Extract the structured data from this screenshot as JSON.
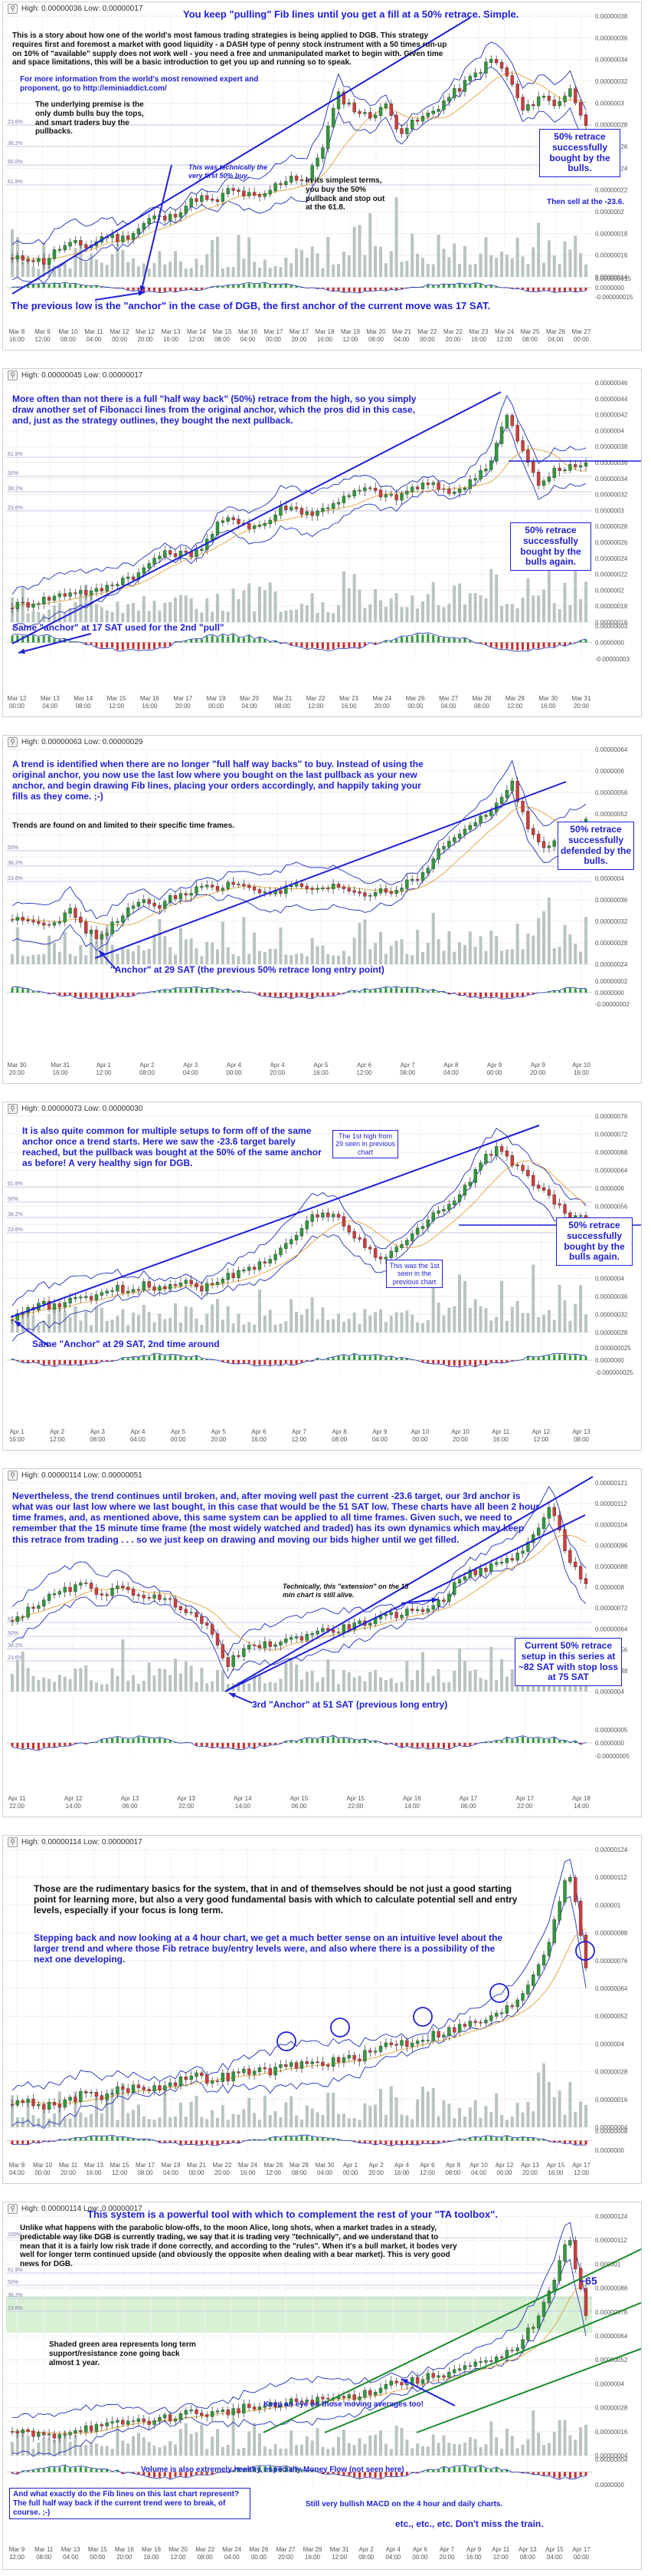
{
  "theme": {
    "price_line": "#1a1a1a",
    "up_color": "#2f9a3a",
    "down_color": "#d23b3b",
    "volume_color": "#b9c4bf",
    "band_color": "#1e2fb5",
    "fib_color": "#c8c8e6",
    "annot_color": "#1f1fd6",
    "macd_pos": "#2e9a3a",
    "macd_neg": "#c62e2e",
    "zone_color": "#b8e6b0"
  },
  "icons": {
    "magnifier": "search-icon"
  },
  "charts": [
    {
      "header": "High: 0.00000036 Low: 0.00000017",
      "title_note": "You keep \"pulling\" Fib lines until you get a fill at a 50% retrace. Simple.",
      "notes": [
        "This is a story about how one of the world's most famous trading strategies is being applied to DGB. This strategy requires first and foremost a market with good liquidity - a DASH type of penny stock instrument with a 50 times run-up on 10% of \"available\" supply does not work well - you need a free and unmanipulated market to begin with. Given time and space limitations, this will be a basic introduction to get you up and running so to speak.",
        "For more information from the world's most renowned expert and proponent, go to http://eminiaddict.com/",
        "The underlying premise is the only dumb bulls buy the tops, and smart traders buy the pullbacks.",
        "This was technically the very first 50% buy.",
        "In its simplest terms, you buy the 50% pullback and stop out at the 61.8.",
        "Then sell at the -23.6.",
        "The previous low is the \"anchor\" in the case of DGB, the first anchor of the current move was 17 SAT."
      ],
      "callout": "50% retrace successfully bought by the bulls.",
      "x_labels": [
        "Mar 8 16:00",
        "Mar 9 12:00",
        "Mar 10 08:00",
        "Mar 11 04:00",
        "Mar 12 00:00",
        "Mar 12 20:00",
        "Mar 13 16:00",
        "Mar 14 12:00",
        "Mar 15 08:00",
        "Mar 16 04:00",
        "Mar 17 00:00",
        "Mar 17 20:00",
        "Mar 18 16:00",
        "Mar 19 12:00",
        "Mar 20 08:00",
        "Mar 21 04:00",
        "Mar 22 00:00",
        "Mar 22 20:00",
        "Mar 23 16:00",
        "Mar 24 12:00",
        "Mar 25 08:00",
        "Mar 26 04:00",
        "Mar 27 00:00"
      ],
      "y_labels": [
        "0.00000038",
        "0.00000036",
        "0.00000034",
        "0.00000032",
        "0.0000003",
        "0.00000028",
        "0.00000026",
        "0.00000024",
        "0.00000022",
        "0.0000002",
        "0.00000018",
        "0.00000016",
        "0.00000014"
      ],
      "macd_labels": [
        "0.000000015",
        "0.0000000",
        "-0.000000015"
      ],
      "fib_labels": [
        "23.6%",
        "38.2%",
        "50.0%",
        "61.8%"
      ],
      "price_path": [
        0.05,
        0.06,
        0.04,
        0.1,
        0.12,
        0.11,
        0.16,
        0.14,
        0.18,
        0.24,
        0.23,
        0.28,
        0.33,
        0.3,
        0.36,
        0.34,
        0.32,
        0.38,
        0.42,
        0.4,
        0.55,
        0.78,
        0.72,
        0.68,
        0.74,
        0.62,
        0.66,
        0.7,
        0.76,
        0.82,
        0.88,
        0.94,
        0.86,
        0.7,
        0.78,
        0.74,
        0.8,
        0.66
      ]
    },
    {
      "header": "High: 0.00000045 Low: 0.00000017",
      "notes": [
        "More often than not there is a full \"half way back\" (50%) retrace from the high, so you simply draw another set of Fibonacci lines from the original anchor, which the pros did in this case, and, just as the strategy outlines, they bought the next pullback.",
        "Same \"anchor\" at 17 SAT used for the 2nd \"pull\""
      ],
      "callout": "50% retrace successfully bought by the bulls again.",
      "x_labels": [
        "Mar 12 00:00",
        "Mar 13 04:00",
        "Mar 14 08:00",
        "Mar 15 12:00",
        "Mar 16 16:00",
        "Mar 17 20:00",
        "Mar 19 00:00",
        "Mar 20 04:00",
        "Mar 21 08:00",
        "Mar 22 12:00",
        "Mar 23 16:00",
        "Mar 24 20:00",
        "Mar 26 00:00",
        "Mar 27 04:00",
        "Mar 28 08:00",
        "Mar 29 12:00",
        "Mar 30 16:00",
        "Mar 31 20:00"
      ],
      "y_labels": [
        "0.00000046",
        "0.00000044",
        "0.00000042",
        "0.0000004",
        "0.00000038",
        "0.00000036",
        "0.00000034",
        "0.00000032",
        "0.0000003",
        "0.00000028",
        "0.00000026",
        "0.00000024",
        "0.00000022",
        "0.0000002",
        "0.00000018",
        "0.00000016"
      ],
      "macd_labels": [
        "0.00000003",
        "0.0000000",
        "-0.00000003"
      ],
      "fib_labels": [
        "61.8%",
        "50%",
        "38.2%",
        "23.6%"
      ],
      "price_path": [
        0.05,
        0.06,
        0.08,
        0.1,
        0.12,
        0.11,
        0.14,
        0.18,
        0.2,
        0.28,
        0.3,
        0.29,
        0.33,
        0.44,
        0.46,
        0.42,
        0.44,
        0.52,
        0.5,
        0.48,
        0.53,
        0.56,
        0.6,
        0.58,
        0.55,
        0.6,
        0.62,
        0.6,
        0.58,
        0.66,
        0.72,
        0.95,
        0.78,
        0.62,
        0.68,
        0.7,
        0.72
      ]
    },
    {
      "header": "High: 0.00000063 Low: 0.00000029",
      "notes": [
        "A trend is identified when there are no longer \"full half way backs\" to buy. Instead of using the original anchor, you now use the last low where you bought on the last pullback as your new anchor, and begin drawing Fib lines, placing your orders accordingly, and happily taking your fills as they come. ;-)",
        "Trends are found on and limited to their specific time frames.",
        "\"Anchor\" at 29 SAT (the previous 50% retrace long entry point)"
      ],
      "callout": "50% retrace successfully defended by the bulls.",
      "x_labels": [
        "Mar 30 20:00",
        "Mar 31 16:00",
        "Apr 1 12:00",
        "Apr 2 08:00",
        "Apr 3 04:00",
        "Apr 4 00:00",
        "Apr 4 20:00",
        "Apr 5 16:00",
        "Apr 6 12:00",
        "Apr 7 08:00",
        "Apr 8 04:00",
        "Apr 9 00:00",
        "Apr 9 20:00",
        "Apr 10 16:00"
      ],
      "y_labels": [
        "0.00000064",
        "0.0000006",
        "0.00000056",
        "0.00000052",
        "0.00000048",
        "0.00000044",
        "0.0000004",
        "0.00000036",
        "0.00000032",
        "0.00000028",
        "0.00000024"
      ],
      "macd_labels": [
        "0.00000002",
        "0.0000000",
        "-0.00000002"
      ],
      "fib_labels": [
        "50%",
        "38.2%",
        "23.6%"
      ],
      "price_path": [
        0.2,
        0.22,
        0.18,
        0.2,
        0.25,
        0.15,
        0.1,
        0.2,
        0.26,
        0.3,
        0.28,
        0.33,
        0.35,
        0.38,
        0.36,
        0.4,
        0.38,
        0.36,
        0.34,
        0.38,
        0.37,
        0.35,
        0.38,
        0.36,
        0.33,
        0.36,
        0.35,
        0.42,
        0.44,
        0.58,
        0.62,
        0.7,
        0.74,
        0.82,
        0.92,
        0.7,
        0.6,
        0.62,
        0.68,
        0.72
      ]
    },
    {
      "header": "High: 0.00000073 Low: 0.00000030",
      "notes": [
        "It is also quite common for multiple setups to form off of the same anchor once a trend starts. Here we saw the -23.6 target barely reached, but the pullback was bought at the 50% of the same anchor as before! A very healthy sign for DGB.",
        "The 1st high from 29 seen in previous chart",
        "This was the 1st seen in the previous chart",
        "Same \"Anchor\" at 29 SAT, 2nd time around"
      ],
      "callout": "50% retrace successfully bought by the bulls again.",
      "x_labels": [
        "Apr 1 16:00",
        "Apr 2 12:00",
        "Apr 3 08:00",
        "Apr 4 04:00",
        "Apr 5 00:00",
        "Apr 5 20:00",
        "Apr 6 16:00",
        "Apr 7 12:00",
        "Apr 8 08:00",
        "Apr 9 04:00",
        "Apr 10 00:00",
        "Apr 10 20:00",
        "Apr 11 16:00",
        "Apr 12 12:00",
        "Apr 13 08:00"
      ],
      "y_labels": [
        "0.00000076",
        "0.00000072",
        "0.00000068",
        "0.00000064",
        "0.0000006",
        "0.00000056",
        "0.00000052",
        "0.00000048",
        "0.00000044",
        "0.0000004",
        "0.00000036",
        "0.00000032",
        "0.00000028"
      ],
      "macd_labels": [
        "0.000000025",
        "0.0000000",
        "-0.000000025"
      ],
      "fib_labels": [
        "61.8%",
        "50%",
        "38.2%",
        "23.6%"
      ],
      "price_path": [
        0.05,
        0.08,
        0.12,
        0.1,
        0.15,
        0.14,
        0.17,
        0.2,
        0.19,
        0.22,
        0.2,
        0.23,
        0.24,
        0.2,
        0.25,
        0.27,
        0.3,
        0.34,
        0.38,
        0.45,
        0.55,
        0.6,
        0.58,
        0.5,
        0.42,
        0.36,
        0.4,
        0.45,
        0.55,
        0.6,
        0.66,
        0.75,
        0.88,
        0.94,
        0.86,
        0.78,
        0.72,
        0.64,
        0.58,
        0.56
      ]
    },
    {
      "header": "High: 0.00000114 Low: 0.00000051",
      "notes": [
        "Nevertheless, the trend continues until broken, and, after moving well past the current -23.6 target, our 3rd anchor is what was our last low where we last bought, in this case that would be the 51 SAT low. These charts have all been 2 hour time frames, and, as mentioned above, this same system can be applied to all time frames. Given such, we need to remember that the 15 minute time frame (the most widely watched and traded) has its own dynamics which may keep this retrace from trading . . . so we just keep on drawing and moving our bids higher until we get filled.",
        "Technically, this \"extension\" on the 15 min chart is still alive.",
        "3rd \"Anchor\" at 51 SAT (previous long entry)"
      ],
      "callout": "Current 50% retrace setup in this series at ~82 SAT with stop loss at 75 SAT",
      "x_labels": [
        "Apr 11 22:00",
        "Apr 12 14:00",
        "Apr 13 06:00",
        "Apr 13 22:00",
        "Apr 14 14:00",
        "Apr 15 06:00",
        "Apr 15 22:00",
        "Apr 16 14:00",
        "Apr 17 06:00",
        "Apr 17 22:00",
        "Apr 18 14:00"
      ],
      "y_labels": [
        "0.00000121",
        "0.00000112",
        "0.00000104",
        "0.00000096",
        "0.00000088",
        "0.0000008",
        "0.00000072",
        "0.00000064",
        "0.00000056",
        "0.00000048",
        "0.0000004"
      ],
      "macd_labels": [
        "0.00000005",
        "0.0000000",
        "-0.00000005"
      ],
      "fib_labels": [
        "61.8%",
        "50%",
        "38.2%",
        "23.6%"
      ],
      "price_path": [
        0.35,
        0.42,
        0.48,
        0.52,
        0.55,
        0.5,
        0.53,
        0.5,
        0.48,
        0.45,
        0.4,
        0.3,
        0.12,
        0.2,
        0.22,
        0.24,
        0.26,
        0.3,
        0.3,
        0.33,
        0.35,
        0.38,
        0.4,
        0.42,
        0.46,
        0.6,
        0.62,
        0.66,
        0.7,
        0.8,
        0.98,
        0.7,
        0.55
      ]
    },
    {
      "header": "High: 0.00000114 Low: 0.00000017",
      "notes": [
        "Those are the rudimentary basics for the system, that in and of themselves should be not just a good starting point for learning more, but also a very good fundamental basis with which to calculate potential sell and entry levels, especially if your focus is long term.",
        "Stepping back and now looking at a 4 hour chart, we get a much better sense on an intuitive level about the larger trend and where those Fib retrace buy/entry levels were, and also where there is a possibility of the next one developing."
      ],
      "x_labels": [
        "Mar 8 04:00",
        "Mar 10 00:00",
        "Mar 11 20:00",
        "Mar 13 16:00",
        "Mar 15 12:00",
        "Mar 17 08:00",
        "Mar 19 04:00",
        "Mar 21 00:00",
        "Mar 22 20:00",
        "Mar 24 16:00",
        "Mar 26 12:00",
        "Mar 28 08:00",
        "Mar 30 04:00",
        "Apr 1 00:00",
        "Apr 2 20:00",
        "Apr 4 16:00",
        "Apr 6 12:00",
        "Apr 8 08:00",
        "Apr 10 04:00",
        "Apr 12 00:00",
        "Apr 13 20:00",
        "Apr 15 16:00",
        "Apr 17 12:00"
      ],
      "y_labels": [
        "0.00000124",
        "0.00000112",
        "0.000001",
        "0.00000088",
        "0.00000076",
        "0.00000064",
        "0.00000052",
        "0.0000004",
        "0.00000028",
        "0.00000016",
        "0.00000004"
      ],
      "macd_labels": [
        "0.00000008",
        "0.0000000"
      ],
      "price_path": [
        0.08,
        0.07,
        0.06,
        0.08,
        0.1,
        0.1,
        0.12,
        0.13,
        0.13,
        0.15,
        0.17,
        0.16,
        0.17,
        0.19,
        0.19,
        0.2,
        0.22,
        0.22,
        0.23,
        0.24,
        0.26,
        0.3,
        0.3,
        0.32,
        0.34,
        0.36,
        0.38,
        0.4,
        0.45,
        0.55,
        0.7,
        0.98,
        0.6
      ]
    },
    {
      "header": "High: 0.00000114 Low: 0.00000017",
      "title_note": "This system is a powerful tool with which to complement the rest of your \"TA toolbox\".",
      "notes": [
        "Unlike what happens with the parabolic blow-offs, to the moon Alice, long shots, when a market trades in a steady, predictable way like DGB is currently trading, we say that it is trading very \"technically\", and we understand that to mean that it is a fairly low risk trade if done correctly, and according to the \"rules\". When it's a bull market, it bodes very well for longer term continued upside (and obviously the opposite when dealing with a bear market). This is very good news for DGB.",
        "Shaded green area represents long term support/resistance zone going back almost 1 year.",
        "Keep an eye on those moving averages too!",
        "Volume is also extremely healthy, especially Money Flow (not seen here)",
        "And what exactly do the Fib lines on this last chart represent? The full half way back if the current trend were to break, of course. ;-)",
        "Still very bullish MACD on the 4 hour and daily charts.",
        "etc., etc., etc. Don't miss the train."
      ],
      "marker": "~65",
      "fib_labels": [
        "100%",
        "61.8%",
        "50%",
        "38.2%",
        "23.6%"
      ],
      "x_labels": [
        "Mar 9 12:00",
        "Mar 11 08:00",
        "Mar 13 04:00",
        "Mar 15 00:00",
        "Mar 16 20:00",
        "Mar 18 16:00",
        "Mar 20 12:00",
        "Mar 22 08:00",
        "Mar 24 04:00",
        "Mar 26 00:00",
        "Mar 27 20:00",
        "Mar 29 16:00",
        "Mar 31 12:00",
        "Apr 2 08:00",
        "Apr 4 04:00",
        "Apr 6 00:00",
        "Apr 7 20:00",
        "Apr 9 16:00",
        "Apr 11 12:00",
        "Apr 13 08:00",
        "Apr 15 04:00",
        "Apr 17 00:00"
      ],
      "y_labels": [
        "0.00000124",
        "0.00000112",
        "0.000001",
        "0.00000088",
        "0.00000076",
        "0.00000064",
        "0.00000052",
        "0.0000004",
        "0.00000028",
        "0.00000016",
        "0.00000004"
      ],
      "macd_labels": [
        "0.00000004",
        "0.0000000"
      ],
      "price_path": [
        0.08,
        0.07,
        0.06,
        0.08,
        0.1,
        0.1,
        0.12,
        0.13,
        0.13,
        0.15,
        0.17,
        0.16,
        0.17,
        0.19,
        0.19,
        0.2,
        0.22,
        0.22,
        0.23,
        0.24,
        0.26,
        0.3,
        0.3,
        0.32,
        0.34,
        0.36,
        0.38,
        0.4,
        0.45,
        0.55,
        0.7,
        0.98,
        0.6
      ]
    }
  ],
  "chart_data": [
    {
      "type": "line",
      "title": "",
      "header": "High: 0.00000036 Low: 0.00000017",
      "high": 3.6e-07,
      "low": 1.7e-07,
      "ylim": [
        1.4e-07,
        3.8e-07
      ],
      "x": [
        "Mar 8",
        "Mar 9",
        "Mar 10",
        "Mar 11",
        "Mar 12",
        "Mar 13",
        "Mar 14",
        "Mar 15",
        "Mar 16",
        "Mar 17",
        "Mar 18",
        "Mar 19",
        "Mar 20",
        "Mar 21",
        "Mar 22",
        "Mar 23",
        "Mar 24",
        "Mar 25",
        "Mar 26",
        "Mar 27"
      ],
      "series": [
        {
          "values": [
            1.7e-07,
            1.9e-07,
            2.1e-07,
            2.4e-07,
            2.5e-07,
            2.6e-07,
            2.6e-07,
            2.8e-07,
            3.2e-07,
            3.1e-07,
            3e-07,
            3.1e-07,
            3.2e-07,
            3.3e-07,
            3.4e-07,
            3.6e-07,
            3.4e-07,
            3.2e-07,
            3.3e-07,
            3.1e-07
          ]
        }
      ]
    },
    {
      "type": "line",
      "header": "High: 0.00000045 Low: 0.00000017",
      "high": 4.5e-07,
      "low": 1.7e-07,
      "ylim": [
        1.6e-07,
        4.6e-07
      ]
    },
    {
      "type": "line",
      "header": "High: 0.00000063 Low: 0.00000029",
      "high": 6.3e-07,
      "low": 2.9e-07,
      "ylim": [
        2.4e-07,
        6.4e-07
      ]
    },
    {
      "type": "line",
      "header": "High: 0.00000073 Low: 0.00000030",
      "high": 7.3e-07,
      "low": 3e-07,
      "ylim": [
        2.8e-07,
        7.6e-07
      ]
    },
    {
      "type": "line",
      "header": "High: 0.00000114 Low: 0.00000051",
      "high": 1.14e-06,
      "low": 5.1e-07,
      "ylim": [
        4e-07,
        1.21e-06
      ]
    },
    {
      "type": "line",
      "header": "High: 0.00000114 Low: 0.00000017",
      "high": 1.14e-06,
      "low": 1.7e-07,
      "ylim": [
        4e-08,
        1.24e-06
      ]
    },
    {
      "type": "line",
      "header": "High: 0.00000114 Low: 0.00000017",
      "high": 1.14e-06,
      "low": 1.7e-07,
      "ylim": [
        4e-08,
        1.24e-06
      ]
    }
  ]
}
